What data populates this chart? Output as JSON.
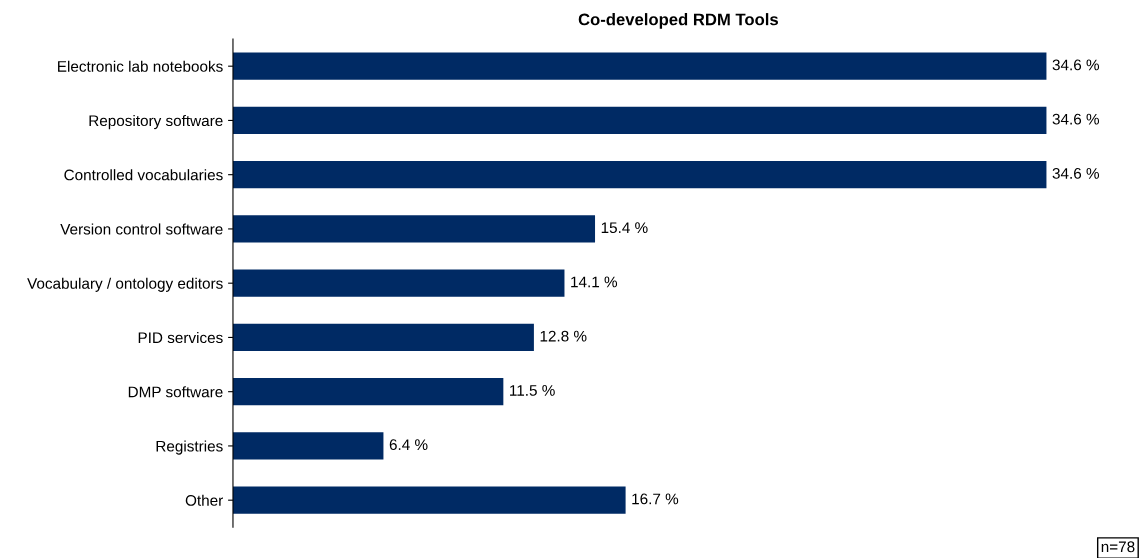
{
  "chart_data": {
    "type": "bar",
    "orientation": "horizontal",
    "title": "Co-developed RDM Tools",
    "categories": [
      "Electronic lab notebooks",
      "Repository software",
      "Controlled vocabularies",
      "Version control software",
      "Vocabulary / ontology editors",
      "PID services",
      "DMP software",
      "Registries",
      "Other"
    ],
    "values": [
      34.6,
      34.6,
      34.6,
      15.4,
      14.1,
      12.8,
      11.5,
      6.4,
      16.7
    ],
    "value_labels": [
      "34.6 %",
      "34.6 %",
      "34.6 %",
      "15.4 %",
      "14.1 %",
      "12.8 %",
      "11.5 %",
      "6.4 %",
      "16.7 %"
    ],
    "color": "#002a64",
    "annotations": [
      "n=78"
    ],
    "tick_labels": "y",
    "grid": false,
    "legend": false
  }
}
